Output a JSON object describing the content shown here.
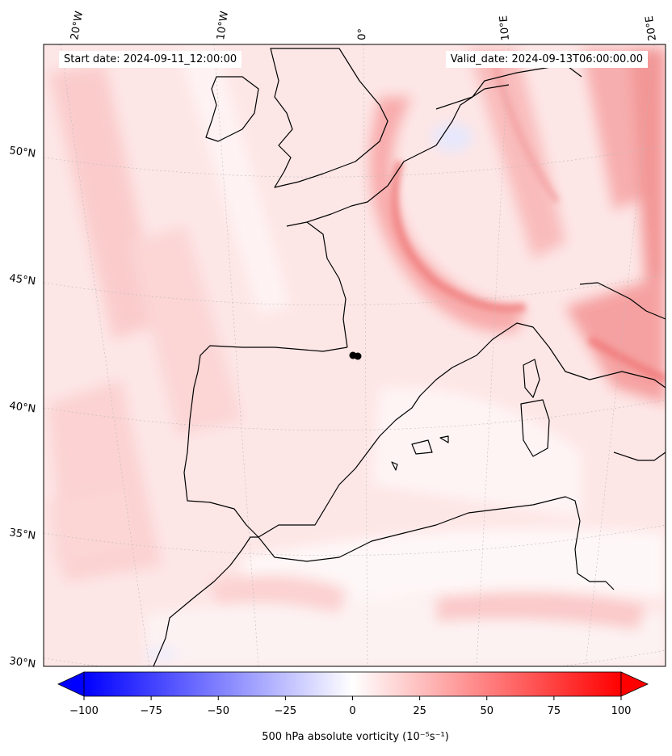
{
  "annotations": {
    "start_date": "Start date: 2024-09-11_12:00:00",
    "valid_date": "Valid_date: 2024-09-13T06:00:00.00"
  },
  "map": {
    "region": "Western Europe / Western Mediterranean",
    "longitude_labels": [
      "20°W",
      "10°W",
      "0°",
      "10°E",
      "20°E"
    ],
    "latitude_labels": [
      "50°N",
      "45°N",
      "40°N",
      "35°N",
      "30°N"
    ],
    "field": "500 hPa absolute vorticity",
    "point_marker": {
      "description": "black dots near Barcelona"
    },
    "colors": {
      "positive": "#ff0000",
      "negative": "#0000ff",
      "zero": "#ffffff",
      "coastline": "#000000"
    }
  },
  "colorbar": {
    "label": "500 hPa absolute vorticity (10⁻⁵s⁻¹)",
    "ticks": [
      "−100",
      "−75",
      "−50",
      "−25",
      "0",
      "25",
      "50",
      "75",
      "100"
    ],
    "range": [
      -100,
      100
    ],
    "extend": "both"
  }
}
